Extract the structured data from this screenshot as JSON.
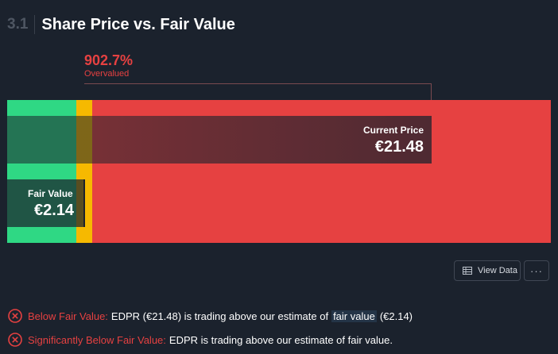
{
  "header": {
    "section_number": "3.1",
    "title": "Share Price vs. Fair Value"
  },
  "valuation": {
    "percent": "902.7%",
    "percent_label": "Overvalued"
  },
  "chart_data": {
    "type": "bar",
    "categories": [
      "Current Price",
      "Fair Value"
    ],
    "values": [
      21.48,
      2.14
    ],
    "current_price": {
      "label": "Current Price",
      "value": "€21.48"
    },
    "fair_value": {
      "label": "Fair Value",
      "value": "€2.14"
    },
    "zone_colors": {
      "undervalued": "#2fd884",
      "about_right": "#f6b900",
      "overvalued": "#e64141"
    }
  },
  "buttons": {
    "view_data": "View Data",
    "more": "···"
  },
  "checks": [
    {
      "icon": "x-circle-icon",
      "title": "Below Fair Value:",
      "text_before": "EDPR (€21.48) is trading above our estimate of",
      "link": "fair value",
      "text_after": "(€2.14)"
    },
    {
      "icon": "x-circle-icon",
      "title": "Significantly Below Fair Value:",
      "text": "EDPR is trading above our estimate of fair value."
    }
  ],
  "colors": {
    "background": "#1b222d",
    "negative": "#e64141",
    "positive": "#2fd884",
    "neutral": "#f6b900"
  }
}
